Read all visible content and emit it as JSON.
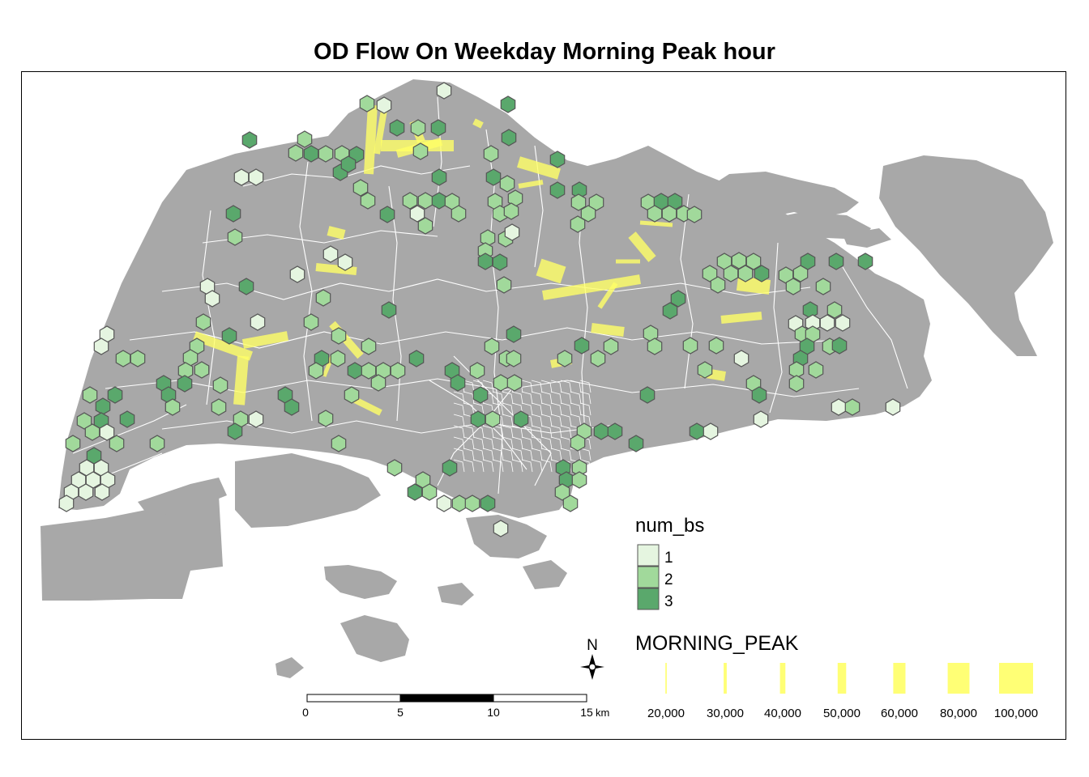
{
  "title": "OD Flow On Weekday Morning Peak hour",
  "colors": {
    "land": "#a8a8a8",
    "water": "#ffffff",
    "subzone_border": "#ffffff",
    "hex_1": "#e5f5e0",
    "hex_2": "#a1d99b",
    "hex_3": "#5aa86c",
    "hex_border": "#555555",
    "flow": "#ffff66"
  },
  "legend_hex": {
    "title": "num_bs",
    "classes": [
      {
        "label": "1",
        "color": "#e5f5e0"
      },
      {
        "label": "2",
        "color": "#a1d99b"
      },
      {
        "label": "3",
        "color": "#5aa86c"
      }
    ]
  },
  "legend_flow": {
    "title": "MORNING_PEAK",
    "classes": [
      {
        "label": "20,000",
        "value": 20000
      },
      {
        "label": "30,000",
        "value": 30000
      },
      {
        "label": "40,000",
        "value": 40000
      },
      {
        "label": "50,000",
        "value": 50000
      },
      {
        "label": "60,000",
        "value": 60000
      },
      {
        "label": "80,000",
        "value": 80000
      },
      {
        "label": "100,000",
        "value": 100000
      }
    ]
  },
  "north_arrow": {
    "label": "N"
  },
  "scale_bar": {
    "ticks": [
      "0",
      "5",
      "10",
      "15"
    ],
    "unit": "km"
  }
}
